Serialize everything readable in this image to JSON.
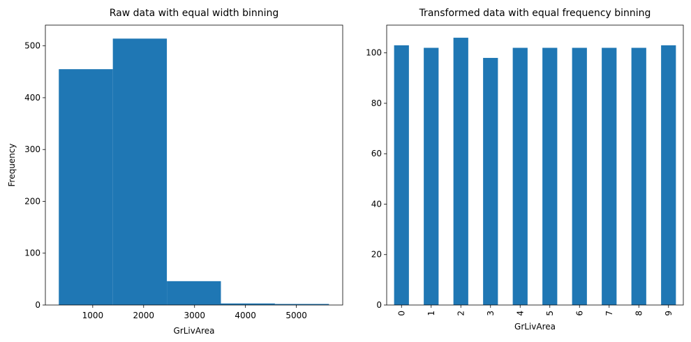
{
  "chart_data": [
    {
      "type": "bar",
      "title": "Raw data with equal width binning",
      "xlabel": "GrLivArea",
      "ylabel": "Frequency",
      "bin_edges": [
        334,
        1395.2,
        2456.4,
        3517.6,
        4578.8,
        5640
      ],
      "values": [
        455,
        514,
        46,
        3,
        2
      ],
      "xlim": [
        70,
        5910
      ],
      "ylim": [
        0,
        540
      ],
      "xticks": [
        1000,
        2000,
        3000,
        4000,
        5000
      ],
      "yticks": [
        0,
        100,
        200,
        300,
        400,
        500
      ],
      "bar_color": "#1f77b4"
    },
    {
      "type": "bar",
      "title": "Transformed data with equal frequency binning",
      "xlabel": "GrLivArea",
      "ylabel": "",
      "categories": [
        "0",
        "1",
        "2",
        "3",
        "4",
        "5",
        "6",
        "7",
        "8",
        "9"
      ],
      "values": [
        103,
        102,
        106,
        98,
        102,
        102,
        102,
        102,
        102,
        103
      ],
      "ylim": [
        0,
        111
      ],
      "yticks": [
        0,
        20,
        40,
        60,
        80,
        100
      ],
      "bar_color": "#1f77b4"
    }
  ]
}
